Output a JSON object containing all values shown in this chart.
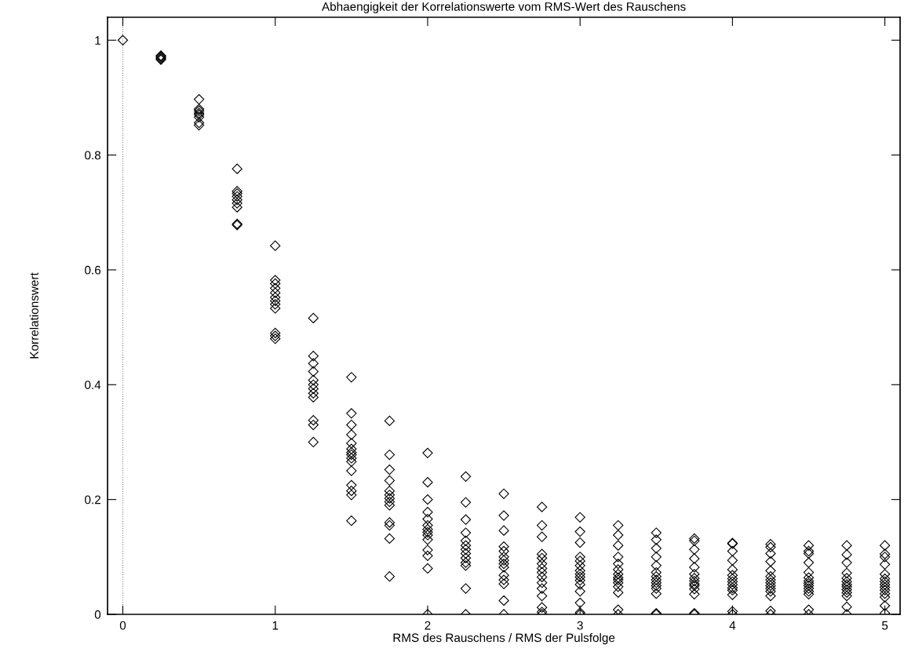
{
  "chart_data": {
    "type": "scatter",
    "title": "Abhaengigkeit der Korrelationswerte vom RMS-Wert des Rauschens",
    "xlabel": "RMS des Rauschens / RMS der Pulsfolge",
    "ylabel": "Korrelationswert",
    "xlim": [
      -0.1,
      5.1
    ],
    "ylim": [
      0,
      1.04
    ],
    "xticks": [
      0,
      1,
      2,
      3,
      4,
      5
    ],
    "yticks": [
      0,
      0.2,
      0.4,
      0.6,
      0.8,
      1
    ],
    "marker": "diamond",
    "grid": false,
    "ref_lines": [
      {
        "axis": "x",
        "value": 0,
        "line_style": "dotted",
        "color": "#808080"
      }
    ],
    "series": [
      {
        "color": "#000000",
        "x": [
          0,
          0.25,
          0.25,
          0.25,
          0.25,
          0.25,
          0.5,
          0.5,
          0.5,
          0.5,
          0.5,
          0.5,
          0.5,
          0.5,
          0.75,
          0.75,
          0.75,
          0.75,
          0.75,
          0.75,
          0.75,
          0.75,
          0.75,
          1,
          1,
          1,
          1,
          1,
          1,
          1,
          1,
          1,
          1,
          1,
          1,
          1.25,
          1.25,
          1.25,
          1.25,
          1.25,
          1.25,
          1.25,
          1.25,
          1.25,
          1.25,
          1.25,
          1.25,
          1.5,
          1.5,
          1.5,
          1.5,
          1.5,
          1.5,
          1.5,
          1.5,
          1.5,
          1.5,
          1.5,
          1.5,
          1.5,
          1.5,
          1.5,
          1.75,
          1.75,
          1.75,
          1.75,
          1.75,
          1.75,
          1.75,
          1.75,
          1.75,
          1.75,
          1.75,
          1.75,
          1.75,
          2,
          2,
          2,
          2,
          2,
          2,
          2,
          2,
          2,
          2,
          2,
          2,
          2,
          2,
          2.25,
          2.25,
          2.25,
          2.25,
          2.25,
          2.25,
          2.25,
          2.25,
          2.25,
          2.25,
          2.25,
          2.25,
          2.25,
          2.5,
          2.5,
          2.5,
          2.5,
          2.5,
          2.5,
          2.5,
          2.5,
          2.5,
          2.5,
          2.5,
          2.5,
          2.5,
          2.5,
          2.75,
          2.75,
          2.75,
          2.75,
          2.75,
          2.75,
          2.75,
          2.75,
          2.75,
          2.75,
          2.75,
          2.75,
          2.75,
          2.75,
          2.75,
          3,
          3,
          3,
          3,
          3,
          3,
          3,
          3,
          3,
          3,
          3,
          3,
          3,
          3,
          3,
          3.25,
          3.25,
          3.25,
          3.25,
          3.25,
          3.25,
          3.25,
          3.25,
          3.25,
          3.25,
          3.25,
          3.25,
          3.25,
          3.25,
          3.5,
          3.5,
          3.5,
          3.5,
          3.5,
          3.5,
          3.5,
          3.5,
          3.5,
          3.5,
          3.5,
          3.5,
          3.5,
          3.5,
          3.75,
          3.75,
          3.75,
          3.75,
          3.75,
          3.75,
          3.75,
          3.75,
          3.75,
          3.75,
          3.75,
          3.75,
          3.75,
          3.75,
          4,
          4,
          4,
          4,
          4,
          4,
          4,
          4,
          4,
          4,
          4,
          4,
          4,
          4,
          4.25,
          4.25,
          4.25,
          4.25,
          4.25,
          4.25,
          4.25,
          4.25,
          4.25,
          4.25,
          4.25,
          4.25,
          4.25,
          4.25,
          4.5,
          4.5,
          4.5,
          4.5,
          4.5,
          4.5,
          4.5,
          4.5,
          4.5,
          4.5,
          4.5,
          4.5,
          4.5,
          4.5,
          4.75,
          4.75,
          4.75,
          4.75,
          4.75,
          4.75,
          4.75,
          4.75,
          4.75,
          4.75,
          4.75,
          4.75,
          4.75,
          5,
          5,
          5,
          5,
          5,
          5,
          5,
          5,
          5,
          5,
          5,
          5,
          5,
          5
        ],
        "values": [
          1.0,
          0.966,
          0.968,
          0.97,
          0.972,
          0.973,
          0.897,
          0.88,
          0.877,
          0.873,
          0.87,
          0.866,
          0.856,
          0.852,
          0.776,
          0.737,
          0.733,
          0.728,
          0.722,
          0.716,
          0.709,
          0.68,
          0.678,
          0.642,
          0.582,
          0.576,
          0.568,
          0.56,
          0.552,
          0.546,
          0.54,
          0.533,
          0.49,
          0.485,
          0.48,
          0.516,
          0.45,
          0.437,
          0.423,
          0.408,
          0.4,
          0.393,
          0.385,
          0.378,
          0.338,
          0.33,
          0.3,
          0.413,
          0.35,
          0.33,
          0.313,
          0.298,
          0.288,
          0.282,
          0.278,
          0.272,
          0.266,
          0.25,
          0.225,
          0.215,
          0.208,
          0.163,
          0.337,
          0.278,
          0.252,
          0.233,
          0.215,
          0.208,
          0.202,
          0.196,
          0.19,
          0.16,
          0.155,
          0.132,
          0.066,
          0.281,
          0.23,
          0.2,
          0.178,
          0.166,
          0.155,
          0.148,
          0.143,
          0.138,
          0.13,
          0.112,
          0.102,
          0.08,
          0.0,
          0.24,
          0.195,
          0.165,
          0.142,
          0.128,
          0.12,
          0.113,
          0.106,
          0.098,
          0.09,
          0.085,
          0.045,
          0.0,
          0.21,
          0.172,
          0.146,
          0.118,
          0.11,
          0.1,
          0.094,
          0.088,
          0.082,
          0.068,
          0.06,
          0.053,
          0.024,
          0.0,
          0.187,
          0.155,
          0.135,
          0.105,
          0.098,
          0.088,
          0.08,
          0.073,
          0.065,
          0.055,
          0.045,
          0.032,
          0.012,
          0.004,
          0.0,
          0.169,
          0.144,
          0.125,
          0.1,
          0.093,
          0.085,
          0.076,
          0.07,
          0.065,
          0.059,
          0.052,
          0.04,
          0.02,
          0.003,
          0.0,
          0.155,
          0.138,
          0.12,
          0.1,
          0.088,
          0.078,
          0.07,
          0.064,
          0.06,
          0.055,
          0.048,
          0.038,
          0.008,
          0.0,
          0.142,
          0.13,
          0.115,
          0.1,
          0.085,
          0.073,
          0.066,
          0.06,
          0.055,
          0.05,
          0.045,
          0.036,
          0.002,
          0.0,
          0.132,
          0.128,
          0.113,
          0.097,
          0.082,
          0.07,
          0.063,
          0.058,
          0.053,
          0.05,
          0.044,
          0.035,
          0.002,
          0.0,
          0.124,
          0.123,
          0.11,
          0.094,
          0.078,
          0.068,
          0.062,
          0.057,
          0.052,
          0.046,
          0.042,
          0.034,
          0.005,
          0.0,
          0.122,
          0.117,
          0.106,
          0.092,
          0.076,
          0.066,
          0.06,
          0.055,
          0.05,
          0.045,
          0.04,
          0.032,
          0.006,
          0.0,
          0.12,
          0.11,
          0.106,
          0.09,
          0.073,
          0.064,
          0.058,
          0.054,
          0.05,
          0.045,
          0.04,
          0.035,
          0.008,
          0.0,
          0.12,
          0.104,
          0.09,
          0.072,
          0.063,
          0.057,
          0.052,
          0.048,
          0.043,
          0.038,
          0.032,
          0.013,
          0.0,
          0.12,
          0.105,
          0.1,
          0.087,
          0.07,
          0.062,
          0.057,
          0.052,
          0.047,
          0.042,
          0.036,
          0.03,
          0.015,
          0.002
        ]
      }
    ]
  }
}
